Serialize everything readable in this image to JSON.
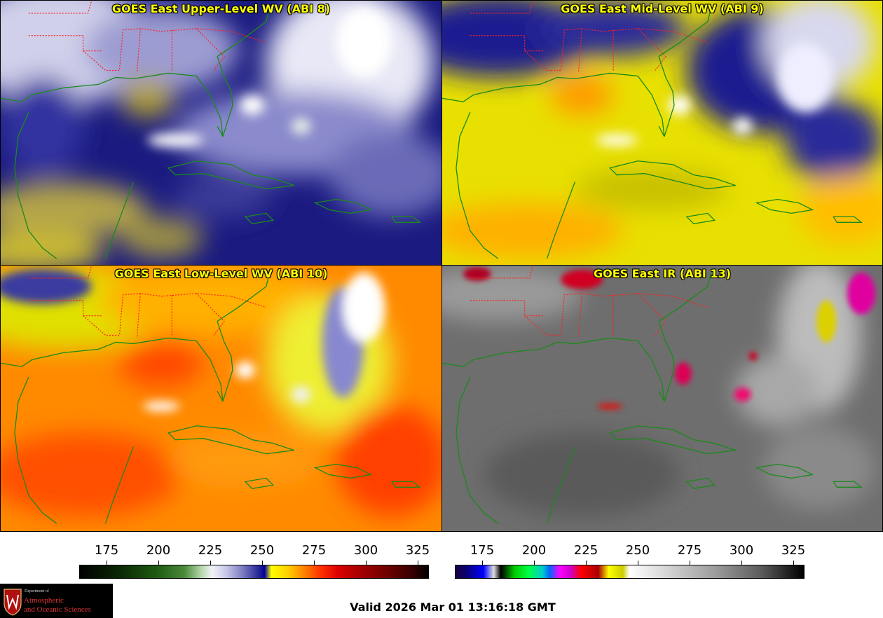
{
  "panels": {
    "upper": {
      "title": "GOES East Upper-Level WV (ABI 8)"
    },
    "mid": {
      "title": "GOES East Mid-Level WV (ABI 9)"
    },
    "low": {
      "title": "GOES East Low-Level WV (ABI 10)"
    },
    "ir": {
      "title": "GOES East IR (ABI 13)"
    }
  },
  "colorbars": {
    "wv": {
      "ticks": [
        "175",
        "200",
        "225",
        "250",
        "275",
        "300",
        "325"
      ]
    },
    "ir": {
      "ticks": [
        "175",
        "200",
        "225",
        "250",
        "275",
        "300",
        "325"
      ]
    }
  },
  "logo": {
    "dept": "Department of",
    "line1": "Atmospheric",
    "line2": "and Oceanic Sciences"
  },
  "valid_time": "Valid 2026 Mar 01 13:16:18 GMT",
  "colors": {
    "title_text": "#ffff00",
    "state_borders": "#ff2020",
    "coastlines": "#1a8a1a"
  }
}
